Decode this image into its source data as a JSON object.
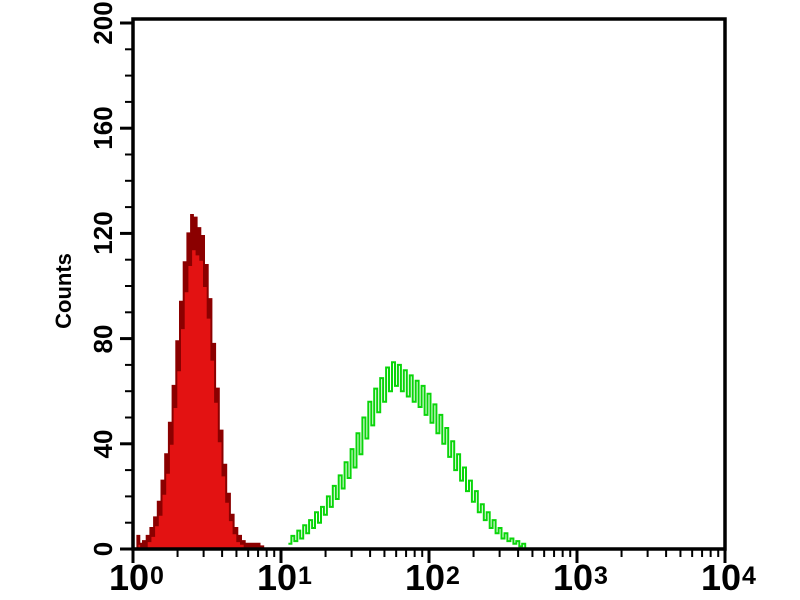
{
  "figure": {
    "background": "#ffffff",
    "frame_color": "#000000",
    "text_color": "#000000"
  },
  "chart_data": {
    "type": "area",
    "subtype": "flow-cytometry-overlay-histogram",
    "title": "",
    "xlabel": "",
    "ylabel": "Counts",
    "x_scale": "log10",
    "x_range_log": [
      0,
      4
    ],
    "ylim": [
      0,
      200
    ],
    "y_major_step": 40,
    "y_minor_step": 10,
    "grid": false,
    "legend": "none",
    "y_tick_labels": [
      "0",
      "40",
      "80",
      "120",
      "160",
      "200"
    ],
    "y_tick_values": [
      0,
      40,
      80,
      120,
      160,
      200
    ],
    "x_tick_labels": [
      {
        "base": "10",
        "exp": "0"
      },
      {
        "base": "10",
        "exp": "1"
      },
      {
        "base": "10",
        "exp": "2"
      },
      {
        "base": "10",
        "exp": "3"
      },
      {
        "base": "10",
        "exp": "4"
      }
    ],
    "series": [
      {
        "name": "red-negative-population",
        "color_fill": "#e31212",
        "color_stroke": "#8b0000",
        "filled": true,
        "peak_x": 2.6,
        "peak_counts": 127,
        "start_log": 0.03,
        "step_log": 0.0125,
        "values": [
          5,
          2,
          1,
          3,
          1,
          5,
          3,
          8,
          5,
          12,
          9,
          18,
          13,
          26,
          21,
          36,
          29,
          48,
          40,
          62,
          54,
          79,
          68,
          94,
          84,
          109,
          98,
          120,
          108,
          127,
          114,
          126,
          112,
          122,
          110,
          119,
          100,
          108,
          88,
          95,
          72,
          78,
          56,
          61,
          41,
          45,
          28,
          32,
          18,
          21,
          11,
          13,
          6,
          8,
          3,
          5,
          2,
          3,
          1,
          2,
          1,
          2,
          1,
          2,
          1,
          2,
          1,
          1,
          0,
          0
        ]
      },
      {
        "name": "green-positive-population",
        "color_fill": "none",
        "color_stroke": "#0ad50a",
        "filled": false,
        "peak_x": 57,
        "peak_counts": 71,
        "start_log": 1.05,
        "step_log": 0.02,
        "values": [
          2,
          5,
          3,
          7,
          4,
          9,
          6,
          11,
          8,
          14,
          10,
          16,
          13,
          20,
          16,
          24,
          19,
          28,
          23,
          33,
          27,
          38,
          31,
          44,
          36,
          50,
          42,
          56,
          47,
          61,
          52,
          65,
          56,
          69,
          60,
          71,
          62,
          70,
          60,
          68,
          58,
          66,
          56,
          64,
          54,
          62,
          51,
          59,
          48,
          55,
          44,
          51,
          40,
          46,
          35,
          41,
          30,
          36,
          26,
          31,
          22,
          26,
          18,
          22,
          14,
          17,
          11,
          14,
          8,
          11,
          6,
          8,
          4,
          6,
          3,
          4,
          2,
          3,
          1,
          2,
          0
        ]
      }
    ]
  }
}
